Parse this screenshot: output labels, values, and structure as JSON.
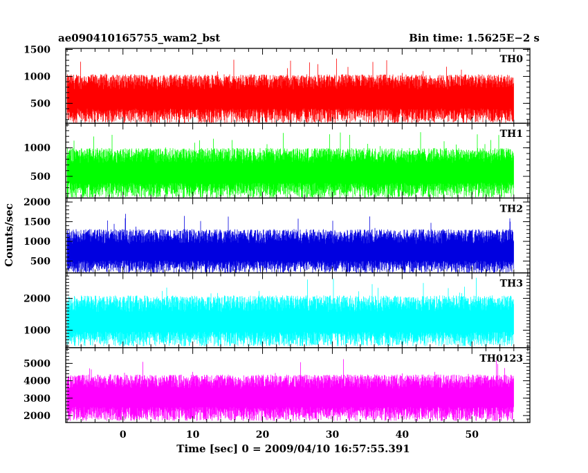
{
  "header": {
    "title": "ae090410165755_wam2_bst",
    "bin_time": "Bin time: 1.5625E−2 s"
  },
  "axes": {
    "ylabel": "Counts/sec",
    "xlabel": "Time [sec] 0 = 2009/04/10 16:57:55.391"
  },
  "chart_data": {
    "type": "line",
    "title": "ae090410165755_wam2_bst",
    "xlabel": "Time [sec] 0 = 2009/04/10 16:57:55.391",
    "ylabel": "Counts/sec",
    "xlim": [
      -8.2,
      58.3
    ],
    "x_range_data": [
      -8.0,
      56.0
    ],
    "bin_time": 0.015625,
    "x_ticks": [
      0,
      10,
      20,
      30,
      40,
      50
    ],
    "panels": [
      {
        "name": "TH0",
        "color": "#ff0000",
        "ylim": [
          130,
          1520
        ],
        "y_ticks": [
          500,
          1000,
          1500
        ],
        "mean": 620,
        "spread": 380,
        "floor": 140,
        "peak_max": 1500
      },
      {
        "name": "TH1",
        "color": "#00ff00",
        "ylim": [
          120,
          1430
        ],
        "y_ticks": [
          500,
          1000
        ],
        "mean": 600,
        "spread": 360,
        "floor": 130,
        "peak_max": 1420
      },
      {
        "name": "TH2",
        "color": "#0000e0",
        "ylim": [
          200,
          2100
        ],
        "y_ticks": [
          500,
          1000,
          1500,
          2000
        ],
        "mean": 760,
        "spread": 500,
        "floor": 210,
        "peak_max": 2000
      },
      {
        "name": "TH3",
        "color": "#00ffff",
        "ylim": [
          450,
          2800
        ],
        "y_ticks": [
          1000,
          2000
        ],
        "mean": 1320,
        "spread": 700,
        "floor": 500,
        "peak_max": 2750
      },
      {
        "name": "TH0123",
        "color": "#ff00ff",
        "ylim": [
          1600,
          5900
        ],
        "y_ticks": [
          2000,
          3000,
          4000,
          5000
        ],
        "mean": 3150,
        "spread": 1100,
        "floor": 1700,
        "peak_max": 5800
      }
    ]
  }
}
